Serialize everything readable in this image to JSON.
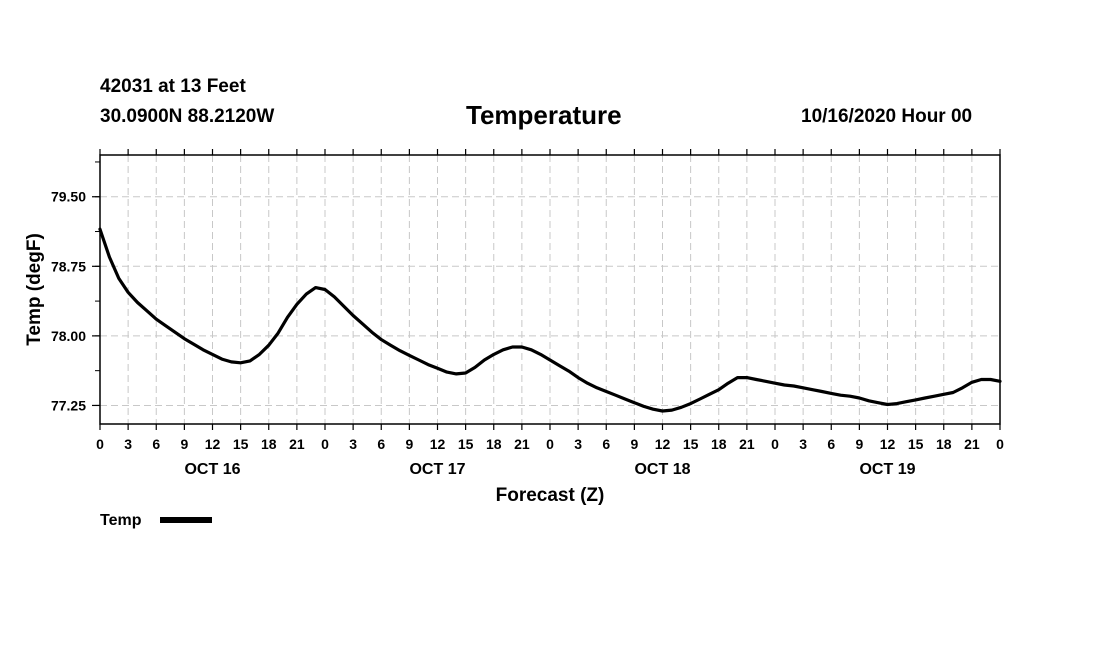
{
  "header": {
    "station": "42031 at 13 Feet",
    "coordinates": "30.0900N 88.2120W",
    "title": "Temperature",
    "run": "10/16/2020 Hour 00"
  },
  "chart_data": {
    "type": "line",
    "title": "Temperature",
    "xlabel": "Forecast (Z)",
    "ylabel": "Temp (degF)",
    "x_unit": "forecast hour",
    "xlim": [
      0,
      96
    ],
    "ylim": [
      77.05,
      79.95
    ],
    "grid": true,
    "legend": "bottom-left",
    "x_tick_hours": [
      0,
      3,
      6,
      9,
      12,
      15,
      18,
      21,
      24,
      27,
      30,
      33,
      36,
      39,
      42,
      45,
      48,
      51,
      54,
      57,
      60,
      63,
      66,
      69,
      72,
      75,
      78,
      81,
      84,
      87,
      90,
      93,
      96
    ],
    "x_tick_labels": [
      "0",
      "3",
      "6",
      "9",
      "12",
      "15",
      "18",
      "21",
      "0",
      "3",
      "6",
      "9",
      "12",
      "15",
      "18",
      "21",
      "0",
      "3",
      "6",
      "9",
      "12",
      "15",
      "18",
      "21",
      "0",
      "3",
      "6",
      "9",
      "12",
      "15",
      "18",
      "21",
      "0"
    ],
    "date_labels": [
      {
        "hour": 12,
        "label": "OCT 16"
      },
      {
        "hour": 36,
        "label": "OCT 17"
      },
      {
        "hour": 60,
        "label": "OCT 18"
      },
      {
        "hour": 84,
        "label": "OCT 19"
      }
    ],
    "y_ticks": [
      77.25,
      78.0,
      78.75,
      79.5
    ],
    "y_tick_labels": [
      "77.25",
      "78.00",
      "78.75",
      "79.50"
    ],
    "series": [
      {
        "name": "Temp",
        "color": "#000000",
        "x": [
          0,
          1,
          2,
          3,
          4,
          5,
          6,
          7,
          8,
          9,
          10,
          11,
          12,
          13,
          14,
          15,
          16,
          17,
          18,
          19,
          20,
          21,
          22,
          23,
          24,
          25,
          26,
          27,
          28,
          29,
          30,
          31,
          32,
          33,
          34,
          35,
          36,
          37,
          38,
          39,
          40,
          41,
          42,
          43,
          44,
          45,
          46,
          47,
          48,
          49,
          50,
          51,
          52,
          53,
          54,
          55,
          56,
          57,
          58,
          59,
          60,
          61,
          62,
          63,
          64,
          65,
          66,
          67,
          68,
          69,
          70,
          71,
          72,
          73,
          74,
          75,
          76,
          77,
          78,
          79,
          80,
          81,
          82,
          83,
          84,
          85,
          86,
          87,
          88,
          89,
          90,
          91,
          92,
          93,
          94,
          95,
          96
        ],
        "values": [
          79.15,
          78.85,
          78.62,
          78.47,
          78.36,
          78.27,
          78.18,
          78.11,
          78.04,
          77.97,
          77.91,
          77.85,
          77.8,
          77.75,
          77.72,
          77.71,
          77.73,
          77.8,
          77.9,
          78.03,
          78.2,
          78.34,
          78.45,
          78.52,
          78.5,
          78.42,
          78.32,
          78.22,
          78.13,
          78.04,
          77.96,
          77.9,
          77.84,
          77.79,
          77.74,
          77.69,
          77.65,
          77.61,
          77.59,
          77.6,
          77.66,
          77.74,
          77.8,
          77.85,
          77.88,
          77.88,
          77.85,
          77.8,
          77.74,
          77.68,
          77.62,
          77.55,
          77.49,
          77.44,
          77.4,
          77.36,
          77.32,
          77.28,
          77.24,
          77.21,
          77.19,
          77.2,
          77.23,
          77.27,
          77.32,
          77.37,
          77.42,
          77.49,
          77.55,
          77.55,
          77.53,
          77.51,
          77.49,
          77.47,
          77.46,
          77.44,
          77.42,
          77.4,
          77.38,
          77.36,
          77.35,
          77.33,
          77.3,
          77.28,
          77.26,
          77.27,
          77.29,
          77.31,
          77.33,
          77.35,
          77.37,
          77.39,
          77.44,
          77.5,
          77.53,
          77.53,
          77.51
        ]
      }
    ]
  }
}
